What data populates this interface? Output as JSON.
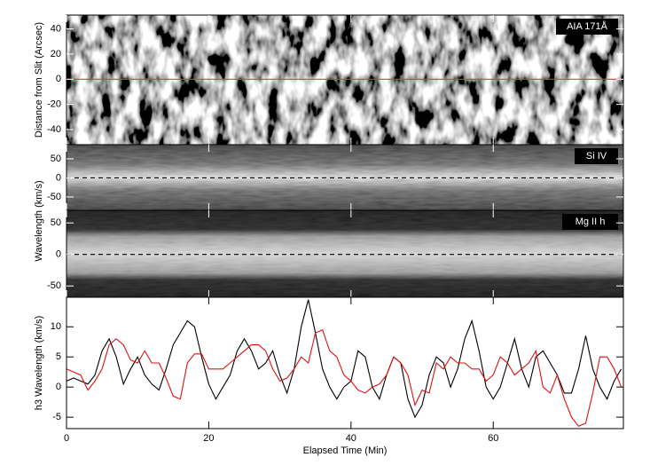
{
  "chart_data": [
    {
      "type": "image",
      "label": "AIA 171Å",
      "ylabel": "Distance from Slit (Arcsec)",
      "ylim": [
        -52,
        51
      ],
      "yticks": [
        -40,
        -20,
        0,
        20,
        40
      ],
      "hline": 0,
      "hline_color": "#d04040"
    },
    {
      "type": "image",
      "label": "Si IV",
      "ylabel": "Wavelength (km/s)",
      "ylim": [
        -85,
        87
      ],
      "yticks": [
        -50,
        0,
        50
      ],
      "hline": 0,
      "hline_color": "#000000"
    },
    {
      "type": "image",
      "label": "Mg II h",
      "ylim": [
        -68,
        70
      ],
      "yticks": [
        -50,
        0,
        50
      ],
      "hline": 0,
      "hline_color": "#000000"
    },
    {
      "type": "line",
      "ylabel": "h3 Wavelength (km/s)",
      "xlabel": "Elapsed Time (Min)",
      "xlim": [
        0,
        78.3
      ],
      "xticks": [
        0,
        20,
        40,
        60
      ],
      "ylim": [
        -6.9,
        14.9
      ],
      "yticks": [
        -5,
        0,
        5,
        10
      ],
      "x": [
        0,
        1,
        2,
        3,
        4,
        5,
        6,
        7,
        8,
        9,
        10,
        11,
        12,
        13,
        14,
        15,
        16,
        17,
        18,
        19,
        20,
        21,
        22,
        23,
        24,
        25,
        26,
        27,
        28,
        29,
        30,
        31,
        32,
        33,
        34,
        35,
        36,
        37,
        38,
        39,
        40,
        41,
        42,
        43,
        44,
        45,
        46,
        47,
        48,
        49,
        50,
        51,
        52,
        53,
        54,
        55,
        56,
        57,
        58,
        59,
        60,
        61,
        62,
        63,
        64,
        65,
        66,
        67,
        68,
        69,
        70,
        71,
        72,
        73,
        74,
        75,
        76,
        77,
        78
      ],
      "series": [
        {
          "color": "#000000",
          "values": [
            1,
            1.5,
            1,
            0.5,
            2,
            6,
            8,
            5,
            0.5,
            3,
            5,
            2,
            0.5,
            -0.5,
            3,
            7,
            9,
            11,
            10,
            5,
            0.5,
            -2,
            0,
            2,
            6,
            8,
            6,
            3,
            4,
            6,
            2,
            -1,
            3,
            10,
            14.5,
            9,
            3,
            0,
            -2,
            0,
            1,
            6,
            5,
            0,
            -2,
            2,
            5,
            4,
            -2,
            -5,
            -3,
            2,
            5,
            4,
            0,
            3,
            8,
            11,
            6,
            0,
            -2,
            0,
            4,
            8,
            3,
            0,
            5,
            6,
            4,
            2,
            -1,
            -1,
            3,
            8.5,
            3,
            0,
            -2,
            1,
            3
          ]
        },
        {
          "color": "#e01010",
          "values": [
            3,
            2.5,
            2,
            -0.5,
            1,
            3,
            7,
            8,
            7,
            4.5,
            4,
            6,
            4,
            4,
            1.5,
            -1.5,
            -2,
            4,
            5.5,
            5.5,
            3,
            3,
            3,
            4,
            5,
            6,
            7,
            7,
            6,
            3,
            1,
            1.5,
            3,
            5,
            4,
            9,
            9.5,
            6,
            5,
            2,
            1,
            -0.5,
            -1,
            0,
            0.5,
            2,
            5,
            4,
            2,
            -3,
            -0.5,
            -1,
            4,
            3,
            5,
            4,
            4,
            3,
            3,
            1,
            2,
            5,
            4,
            2,
            3,
            4,
            6,
            0,
            -1,
            2,
            -2,
            -5,
            -6.5,
            -6,
            -1,
            5,
            5,
            3,
            0
          ]
        }
      ]
    }
  ]
}
